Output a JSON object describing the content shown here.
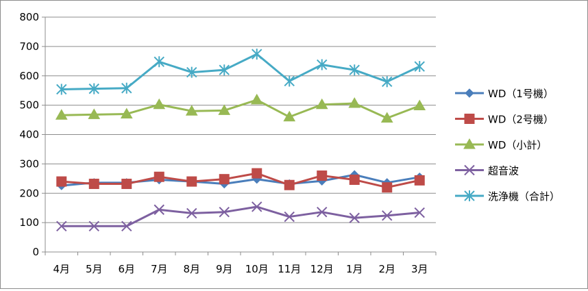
{
  "chart_data": {
    "type": "line",
    "title": "",
    "xlabel": "",
    "ylabel": "",
    "categories": [
      "4月",
      "5月",
      "6月",
      "7月",
      "8月",
      "9月",
      "10月",
      "11月",
      "12月",
      "1月",
      "2月",
      "3月"
    ],
    "ylim": [
      0,
      800
    ],
    "yticks": [
      0,
      100,
      200,
      300,
      400,
      500,
      600,
      700,
      800
    ],
    "grid": true,
    "legend_position": "right",
    "series": [
      {
        "name": "WD（1号機）",
        "color": "#4a7ebb",
        "marker": "diamond",
        "values": [
          226,
          236,
          236,
          246,
          240,
          232,
          248,
          232,
          242,
          263,
          236,
          255
        ]
      },
      {
        "name": "WD（2号機）",
        "color": "#be4b48",
        "marker": "square",
        "values": [
          240,
          232,
          232,
          256,
          240,
          248,
          268,
          228,
          260,
          246,
          220,
          244
        ]
      },
      {
        "name": "WD（小計）",
        "color": "#98b954",
        "marker": "triangle",
        "values": [
          466,
          468,
          470,
          502,
          480,
          482,
          518,
          460,
          502,
          506,
          456,
          498
        ]
      },
      {
        "name": "超音波",
        "color": "#7d60a0",
        "marker": "x",
        "values": [
          88,
          88,
          88,
          144,
          132,
          136,
          154,
          120,
          136,
          116,
          124,
          134
        ]
      },
      {
        "name": "洗浄機（合計）",
        "color": "#46aac5",
        "marker": "star",
        "values": [
          554,
          556,
          558,
          648,
          612,
          620,
          674,
          582,
          638,
          620,
          580,
          632
        ]
      }
    ]
  }
}
